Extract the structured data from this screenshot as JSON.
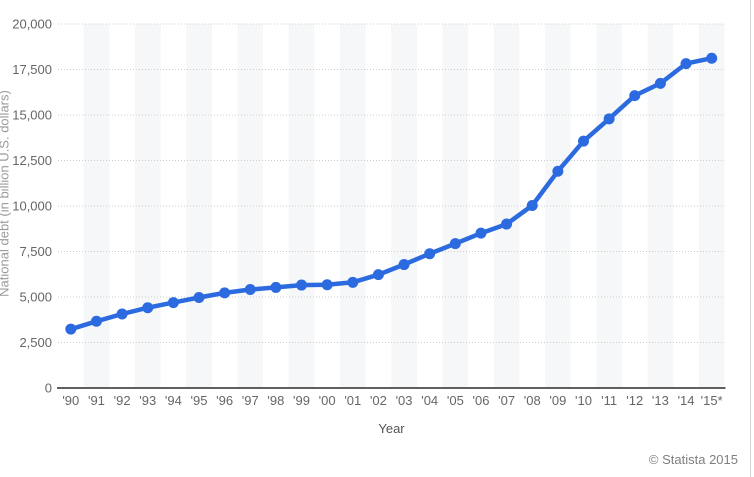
{
  "widget": {
    "copyright": "© Statista 2015",
    "background": "#ffffff",
    "border_color": "#d4d4d4"
  },
  "chart_data": {
    "type": "line",
    "title": "",
    "xlabel": "Year",
    "ylabel": "National debt (in billion U.S. dollars)",
    "categories": [
      "'90",
      "'91",
      "'92",
      "'93",
      "'94",
      "'95",
      "'96",
      "'97",
      "'98",
      "'99",
      "'00",
      "'01",
      "'02",
      "'03",
      "'04",
      "'05",
      "'06",
      "'07",
      "'08",
      "'09",
      "'10",
      "'11",
      "'12",
      "'13",
      "'14",
      "'15*"
    ],
    "values": [
      3233,
      3665,
      4065,
      4411,
      4693,
      4974,
      5225,
      5413,
      5526,
      5656,
      5674,
      5807,
      6228,
      6783,
      7379,
      7933,
      8507,
      9008,
      10025,
      11910,
      13562,
      14790,
      16066,
      16738,
      17824,
      18120
    ],
    "ylim": [
      0,
      20000
    ],
    "yticks": [
      {
        "value": 0,
        "label": "0"
      },
      {
        "value": 2500,
        "label": "2,500"
      },
      {
        "value": 5000,
        "label": "5,000"
      },
      {
        "value": 7500,
        "label": "7,500"
      },
      {
        "value": 10000,
        "label": "10,000"
      },
      {
        "value": 12500,
        "label": "12,500"
      },
      {
        "value": 15000,
        "label": "15,000"
      },
      {
        "value": 17500,
        "label": "17,500"
      },
      {
        "value": 20000,
        "label": "20,000"
      }
    ],
    "grid": "dotted-horizontal",
    "legend": "none",
    "line_color": "#2c6bdf",
    "marker_color": "#2c6bdf",
    "stripe_color": "#f6f7f8",
    "grid_color": "#cccccc",
    "axis_color": "#2b2b2b",
    "tick_label_color": "#666666"
  }
}
